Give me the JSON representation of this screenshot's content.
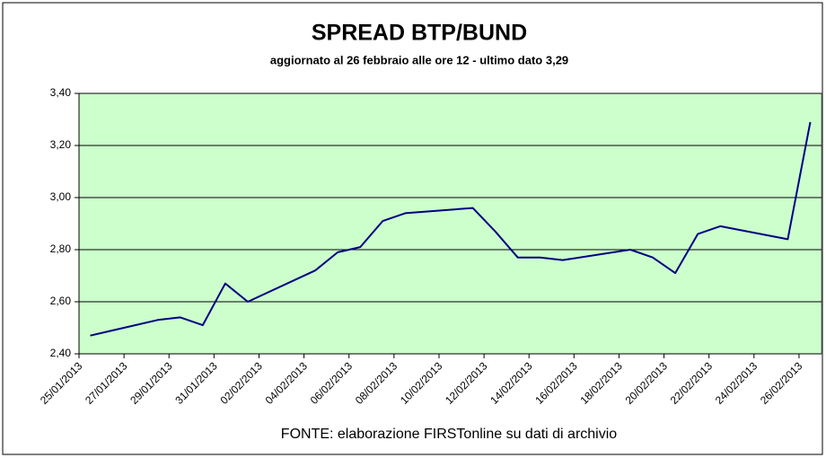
{
  "chart_data": {
    "type": "line",
    "title": "SPREAD  BTP/BUND",
    "subtitle": "aggiornato al 26 febbraio alle ore 12 - ultimo dato 3,29",
    "source": "FONTE: elaborazione FIRSTonline su dati di archivio",
    "x": [
      "25/01/2013",
      "28/01/2013",
      "29/01/2013",
      "30/01/2013",
      "31/01/2013",
      "01/02/2013",
      "04/02/2013",
      "05/02/2013",
      "06/02/2013",
      "07/02/2013",
      "08/02/2013",
      "11/02/2013",
      "12/02/2013",
      "13/02/2013",
      "14/02/2013",
      "15/02/2013",
      "18/02/2013",
      "19/02/2013",
      "20/02/2013",
      "21/02/2013",
      "22/02/2013",
      "25/02/2013",
      "26/02/2013"
    ],
    "values": [
      2.47,
      2.53,
      2.54,
      2.51,
      2.67,
      2.6,
      2.72,
      2.79,
      2.81,
      2.91,
      2.94,
      2.96,
      2.87,
      2.77,
      2.77,
      2.76,
      2.8,
      2.77,
      2.71,
      2.86,
      2.89,
      2.84,
      3.29
    ],
    "color": "#000080",
    "xticks": [
      "25/01/2013",
      "27/01/2013",
      "29/01/2013",
      "31/01/2013",
      "02/02/2013",
      "04/02/2013",
      "06/02/2013",
      "08/02/2013",
      "10/02/2013",
      "12/02/2013",
      "14/02/2013",
      "16/02/2013",
      "18/02/2013",
      "20/02/2013",
      "22/02/2013",
      "24/02/2013",
      "26/02/2013"
    ],
    "ylim": [
      2.4,
      3.4
    ],
    "yticks": [
      {
        "value": 2.4,
        "label": "2,40"
      },
      {
        "value": 2.6,
        "label": "2,60"
      },
      {
        "value": 2.8,
        "label": "2,80"
      },
      {
        "value": 3.0,
        "label": "3,00"
      },
      {
        "value": 3.2,
        "label": "3,20"
      },
      {
        "value": 3.4,
        "label": "3,40"
      }
    ],
    "grid": true
  }
}
